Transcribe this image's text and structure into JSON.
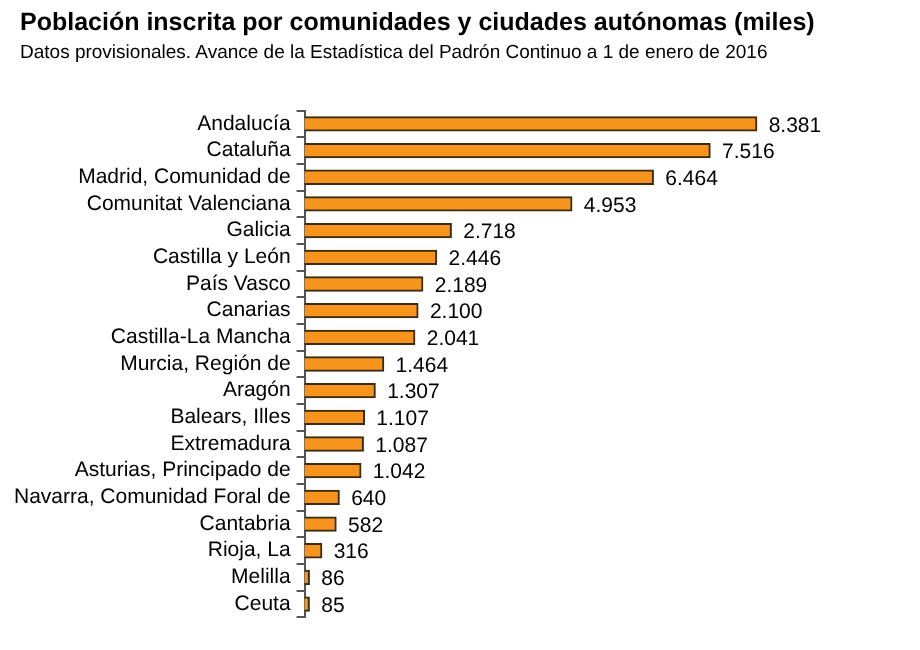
{
  "chart_data": {
    "type": "bar",
    "orientation": "horizontal",
    "title": "Población inscrita por comunidades y ciudades autónomas (miles)",
    "subtitle": "Datos provisionales. Avance de la Estadística del Padrón Continuo a 1 de enero de 2016",
    "categories": [
      "Andalucía",
      "Cataluña",
      "Madrid, Comunidad de",
      "Comunitat Valenciana",
      "Galicia",
      "Castilla y León",
      "País Vasco",
      "Canarias",
      "Castilla-La Mancha",
      "Murcia, Región de",
      "Aragón",
      "Balears, Illes",
      "Extremadura",
      "Asturias, Principado de",
      "Navarra, Comunidad Foral de",
      "Cantabria",
      "Rioja, La",
      "Melilla",
      "Ceuta"
    ],
    "values": [
      8381,
      7516,
      6464,
      4953,
      2718,
      2446,
      2189,
      2100,
      2041,
      1464,
      1307,
      1107,
      1087,
      1042,
      640,
      582,
      316,
      86,
      85
    ],
    "value_labels": [
      "8.381",
      "7.516",
      "6.464",
      "4.953",
      "2.718",
      "2.446",
      "2.189",
      "2.100",
      "2.041",
      "1.464",
      "1.307",
      "1.107",
      "1.087",
      "1.042",
      "640",
      "582",
      "316",
      "86",
      "85"
    ],
    "color": "#f7941d",
    "tick_labels": "y",
    "grid": false,
    "legend": false
  }
}
